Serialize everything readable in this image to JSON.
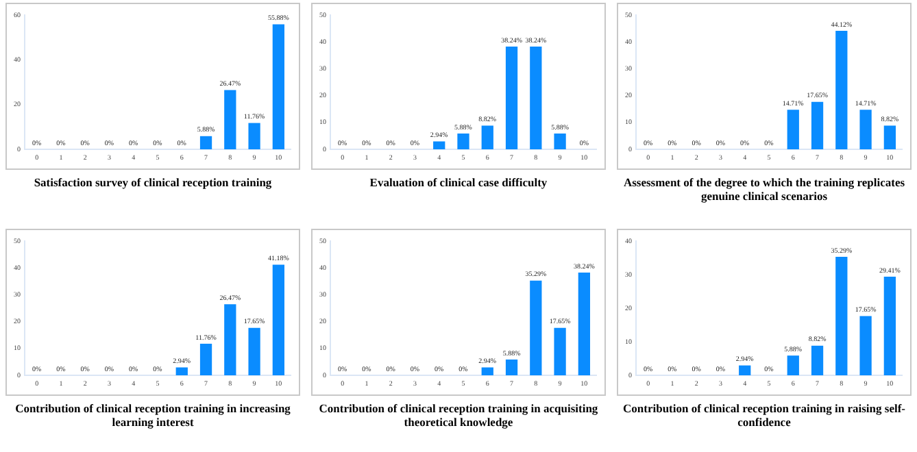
{
  "chart_data": [
    {
      "type": "bar",
      "title": "Satisfaction survey of clinical reception training",
      "categories": [
        "0",
        "1",
        "2",
        "3",
        "4",
        "5",
        "6",
        "7",
        "8",
        "9",
        "10"
      ],
      "values": [
        0,
        0,
        0,
        0,
        0,
        0,
        0,
        5.88,
        26.47,
        11.76,
        55.88
      ],
      "value_labels": [
        "0%",
        "0%",
        "0%",
        "0%",
        "0%",
        "0%",
        "0%",
        "5.88%",
        "26.47%",
        "11.76%",
        "55.88%"
      ],
      "color": "#0a8cff",
      "ylim": [
        0,
        60
      ],
      "yticks": [
        0,
        20,
        40,
        60
      ],
      "grid": false,
      "legend": false
    },
    {
      "type": "bar",
      "title": "Evaluation of clinical case difficulty",
      "categories": [
        "0",
        "1",
        "2",
        "3",
        "4",
        "5",
        "6",
        "7",
        "8",
        "9",
        "10"
      ],
      "values": [
        0,
        0,
        0,
        0,
        2.94,
        5.88,
        8.82,
        38.24,
        38.24,
        5.88,
        0
      ],
      "value_labels": [
        "0%",
        "0%",
        "0%",
        "0%",
        "2.94%",
        "5.88%",
        "8.82%",
        "38.24%",
        "38.24%",
        "5.88%",
        "0%"
      ],
      "color": "#0a8cff",
      "ylim": [
        0,
        50
      ],
      "yticks": [
        0,
        10,
        20,
        30,
        40,
        50
      ],
      "grid": false,
      "legend": false
    },
    {
      "type": "bar",
      "title": "Assessment of the degree to which the training replicates genuine clinical scenarios",
      "categories": [
        "0",
        "1",
        "2",
        "3",
        "4",
        "5",
        "6",
        "7",
        "8",
        "9",
        "10"
      ],
      "values": [
        0,
        0,
        0,
        0,
        0,
        0,
        14.71,
        17.65,
        44.12,
        14.71,
        8.82
      ],
      "value_labels": [
        "0%",
        "0%",
        "0%",
        "0%",
        "0%",
        "0%",
        "14.71%",
        "17.65%",
        "44.12%",
        "14.71%",
        "8.82%"
      ],
      "color": "#0a8cff",
      "ylim": [
        0,
        50
      ],
      "yticks": [
        0,
        10,
        20,
        30,
        40,
        50
      ],
      "grid": false,
      "legend": false
    },
    {
      "type": "bar",
      "title": "Contribution of clinical reception training in increasing learning interest",
      "categories": [
        "0",
        "1",
        "2",
        "3",
        "4",
        "5",
        "6",
        "7",
        "8",
        "9",
        "10"
      ],
      "values": [
        0,
        0,
        0,
        0,
        0,
        0,
        2.94,
        11.76,
        26.47,
        17.65,
        41.18
      ],
      "value_labels": [
        "0%",
        "0%",
        "0%",
        "0%",
        "0%",
        "0%",
        "2.94%",
        "11.76%",
        "26.47%",
        "17.65%",
        "41.18%"
      ],
      "color": "#0a8cff",
      "ylim": [
        0,
        50
      ],
      "yticks": [
        0,
        10,
        20,
        30,
        40,
        50
      ],
      "grid": false,
      "legend": false
    },
    {
      "type": "bar",
      "title": "Contribution of clinical reception training in acquisiting theoretical knowledge",
      "categories": [
        "0",
        "1",
        "2",
        "3",
        "4",
        "5",
        "6",
        "7",
        "8",
        "9",
        "10"
      ],
      "values": [
        0,
        0,
        0,
        0,
        0,
        0,
        2.94,
        5.88,
        35.29,
        17.65,
        38.24
      ],
      "value_labels": [
        "0%",
        "0%",
        "0%",
        "0%",
        "0%",
        "0%",
        "2.94%",
        "5.88%",
        "35.29%",
        "17.65%",
        "38.24%"
      ],
      "color": "#0a8cff",
      "ylim": [
        0,
        50
      ],
      "yticks": [
        0,
        10,
        20,
        30,
        40,
        50
      ],
      "grid": false,
      "legend": false
    },
    {
      "type": "bar",
      "title": "Contribution of clinical reception training in raising self-confidence",
      "categories": [
        "0",
        "1",
        "2",
        "3",
        "4",
        "5",
        "6",
        "7",
        "8",
        "9",
        "10"
      ],
      "values": [
        0,
        0,
        0,
        0,
        2.94,
        0,
        5.88,
        8.82,
        35.29,
        17.65,
        29.41
      ],
      "value_labels": [
        "0%",
        "0%",
        "0%",
        "0%",
        "2.94%",
        "0%",
        "5.88%",
        "8.82%",
        "35.29%",
        "17.65%",
        "29.41%"
      ],
      "color": "#0a8cff",
      "ylim": [
        0,
        40
      ],
      "yticks": [
        0,
        10,
        20,
        30,
        40
      ],
      "grid": false,
      "legend": false
    }
  ]
}
